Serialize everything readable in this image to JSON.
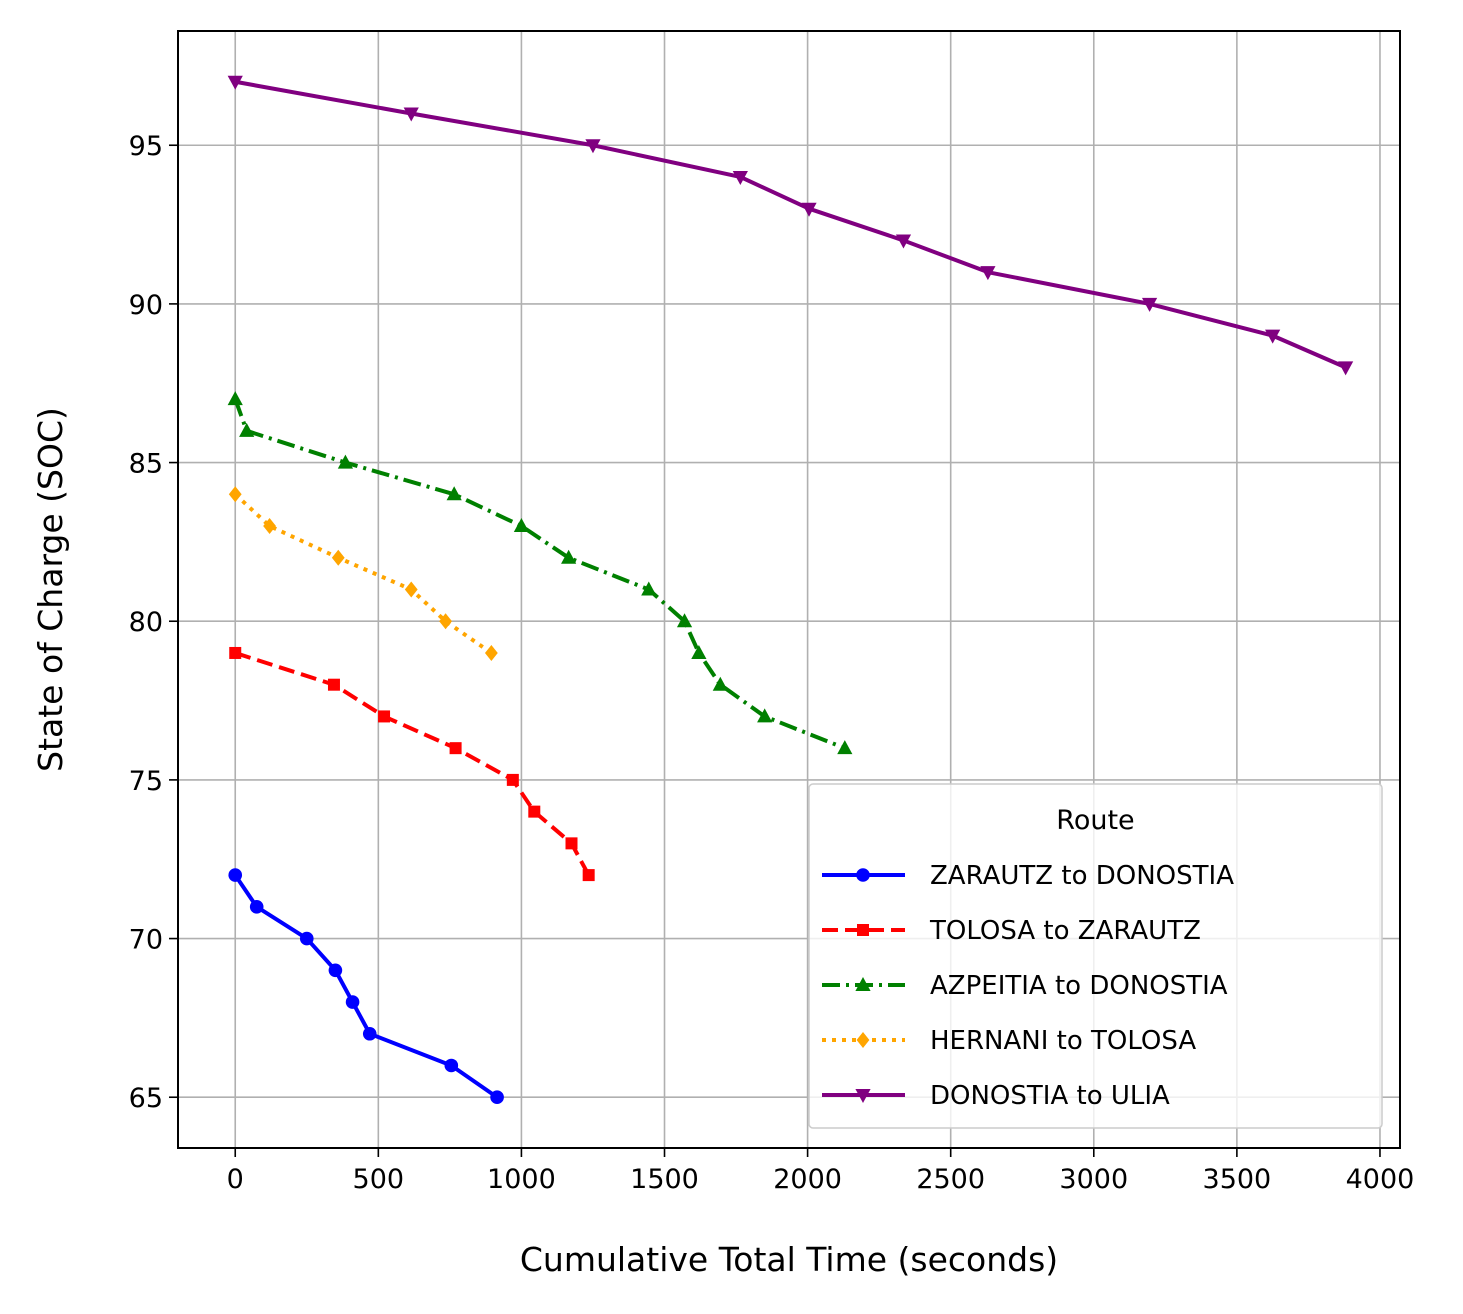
{
  "chart_data": {
    "type": "line",
    "xlabel": "Cumulative Total Time (seconds)",
    "ylabel": "State of Charge (SOC)",
    "xlim": [
      -200,
      4070
    ],
    "ylim": [
      63.4,
      98.6
    ],
    "xticks": [
      0,
      500,
      1000,
      1500,
      2000,
      2500,
      3000,
      3500,
      4000
    ],
    "yticks": [
      65,
      70,
      75,
      80,
      85,
      90,
      95
    ],
    "grid": true,
    "legend": {
      "title": "Route",
      "placement": "lower-right"
    },
    "series": [
      {
        "name": "ZARAUTZ to DONOSTIA",
        "color": "#0000ff",
        "marker": "circle",
        "linestyle": "solid",
        "x": [
          0,
          75,
          250,
          350,
          410,
          470,
          755,
          915
        ],
        "y": [
          72,
          71,
          70,
          69,
          68,
          67,
          66,
          65
        ]
      },
      {
        "name": "TOLOSA to ZARAUTZ",
        "color": "#ff0000",
        "marker": "square",
        "linestyle": "dashed",
        "x": [
          0,
          345,
          520,
          770,
          970,
          1045,
          1175,
          1235
        ],
        "y": [
          79,
          78,
          77,
          76,
          75,
          74,
          73,
          72
        ]
      },
      {
        "name": "AZPEITIA to DONOSTIA",
        "color": "#008000",
        "marker": "triangle-up",
        "linestyle": "dashdot",
        "x": [
          0,
          40,
          385,
          765,
          1000,
          1165,
          1445,
          1570,
          1620,
          1695,
          1850,
          2130
        ],
        "y": [
          87,
          86,
          85,
          84,
          83,
          82,
          81,
          80,
          79,
          78,
          77,
          76
        ]
      },
      {
        "name": "HERNANI to TOLOSA",
        "color": "#ffa500",
        "marker": "diamond",
        "linestyle": "dotted",
        "x": [
          0,
          120,
          360,
          615,
          735,
          895
        ],
        "y": [
          84,
          83,
          82,
          81,
          80,
          79
        ]
      },
      {
        "name": "DONOSTIA to ULIA",
        "color": "#800080",
        "marker": "triangle-down",
        "linestyle": "solid",
        "x": [
          0,
          615,
          1250,
          1765,
          2005,
          2335,
          2630,
          3195,
          3625,
          3880
        ],
        "y": [
          97,
          96,
          95,
          94,
          93,
          92,
          91,
          90,
          89,
          88
        ]
      }
    ]
  }
}
